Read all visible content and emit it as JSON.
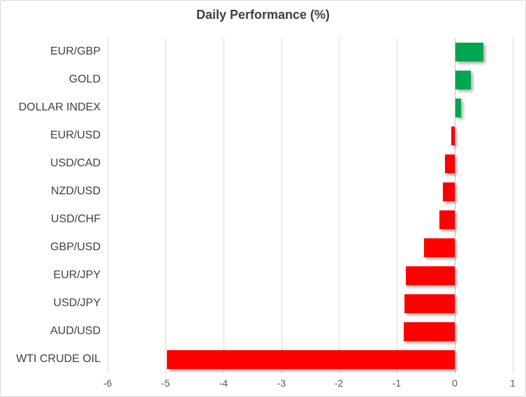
{
  "chart_data": {
    "type": "bar",
    "orientation": "horizontal",
    "title": "Daily Performance (%)",
    "categories": [
      "EUR/GBP",
      "GOLD",
      "DOLLAR INDEX",
      "EUR/USD",
      "USD/CAD",
      "NZD/USD",
      "USD/CHF",
      "GBP/USD",
      "EUR/JPY",
      "USD/JPY",
      "AUD/USD",
      "WTI CRUDE OIL"
    ],
    "values": [
      0.48,
      0.27,
      0.1,
      -0.06,
      -0.17,
      -0.21,
      -0.27,
      -0.53,
      -0.85,
      -0.87,
      -0.88,
      -4.97
    ],
    "xlabel": "",
    "ylabel": "",
    "xlim": [
      -6,
      1
    ],
    "xticks": [
      -6,
      -5,
      -4,
      -3,
      -2,
      -1,
      0,
      1
    ],
    "xtick_labels": [
      "-6",
      "-5",
      "-4",
      "-3",
      "-2",
      "-1",
      "0",
      "1"
    ],
    "grid": "vertical",
    "legend": "none",
    "colors": {
      "positive": "#00a650",
      "negative": "#ff0000",
      "title_text": "#404040",
      "category_text": "#404040",
      "tick_text": "#595959",
      "gridline": "#d9d9d9",
      "zero_axis_line": "#bfbfbf",
      "chart_border": "#d9d9d9"
    }
  }
}
